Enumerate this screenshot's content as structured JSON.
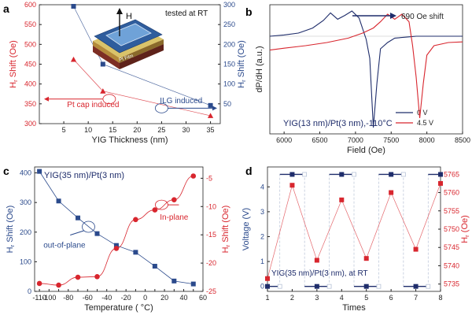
{
  "colors": {
    "red": "#d8262e",
    "blue": "#2b4a8c",
    "navy": "#1f2d6b",
    "grid": "#b7c2d6"
  },
  "panel_labels": [
    "a",
    "b",
    "c",
    "d"
  ],
  "chart_data": [
    {
      "type": "scatter",
      "panel": "a",
      "xlabel": "YIG Thickness (nm)",
      "ylabel": "H_r Shift (Oe)",
      "y2label": "H_r Shift (Oe)",
      "xlim": [
        0,
        37
      ],
      "ylim": [
        300,
        600
      ],
      "y2lim": [
        0,
        300
      ],
      "xticks": [
        "5",
        "10",
        "15",
        "20",
        "25",
        "30",
        "35"
      ],
      "yticks": [
        "300",
        "350",
        "400",
        "450",
        "500",
        "550",
        "600"
      ],
      "y2ticks": [
        "50",
        "100",
        "150",
        "200",
        "250",
        "300"
      ],
      "series": [
        {
          "name": "Pt cap induced",
          "color": "#d8262e",
          "axis": "left",
          "marker": "triangle",
          "x": [
            7,
            13,
            35
          ],
          "y": [
            462,
            382,
            320
          ]
        },
        {
          "name": "ILG induced",
          "color": "#2b4a8c",
          "axis": "right",
          "marker": "square",
          "x": [
            7,
            13,
            35
          ],
          "y": [
            296,
            150,
            46
          ]
        }
      ],
      "annotations": {
        "tested": "tested at RT",
        "h": "H",
        "film": "Pt Film",
        "pt_cap": "Pt cap induced",
        "ilg": "ILG induced"
      }
    },
    {
      "type": "line",
      "panel": "b",
      "xlabel": "Field (Oe)",
      "ylabel": "dP/dH (a.u.)",
      "xlim": [
        5800,
        8500
      ],
      "xticks": [
        "6000",
        "6500",
        "7000",
        "7500",
        "8000",
        "8500"
      ],
      "series": [
        {
          "name": "0 V",
          "color": "#1f2d6b",
          "x": [
            5800,
            6000,
            6200,
            6400,
            6550,
            6650,
            6750,
            6850,
            6950,
            7050,
            7150,
            7200,
            7250,
            7300,
            7350,
            7450,
            7550,
            7650,
            7750,
            7850,
            8000,
            8500
          ],
          "y": [
            0.55,
            0.57,
            0.6,
            0.68,
            0.8,
            0.92,
            0.82,
            0.88,
            0.95,
            0.84,
            0.5,
            0.2,
            -0.9,
            -0.2,
            0.35,
            0.45,
            0.52,
            0.53,
            0.54,
            0.55,
            0.55,
            0.55
          ]
        },
        {
          "name": "4.5 V",
          "color": "#d8262e",
          "x": [
            5800,
            6000,
            6300,
            6600,
            6900,
            7100,
            7250,
            7350,
            7450,
            7550,
            7650,
            7750,
            7800,
            7850,
            7900,
            7950,
            8000,
            8100,
            8300,
            8500
          ],
          "y": [
            0.33,
            0.36,
            0.4,
            0.45,
            0.52,
            0.6,
            0.68,
            0.78,
            0.9,
            0.82,
            0.9,
            0.78,
            0.4,
            -0.1,
            -0.75,
            -0.2,
            0.25,
            0.4,
            0.45,
            0.46
          ]
        }
      ],
      "annotations": {
        "shift": "690 Oe shift",
        "sample": "YIG(13 nm)/Pt(3 nm),-110°C"
      }
    },
    {
      "type": "scatter",
      "panel": "c",
      "xlabel": "Temperature ( °C)",
      "ylabel": "H_r Shift (Oe)",
      "y2label": "H_r Shift (Oe)",
      "xlim": [
        -115,
        60
      ],
      "ylim": [
        0,
        420
      ],
      "y2lim": [
        -25,
        -3
      ],
      "xticks": [
        "-110",
        "-100",
        "-90",
        "-80",
        "-70",
        "-60",
        "-50",
        "-40",
        "-30",
        "-20",
        "-10",
        "0",
        "10",
        "20",
        "30",
        "40",
        "50",
        "60"
      ],
      "yticks": [
        "0",
        "100",
        "200",
        "300",
        "400"
      ],
      "y2ticks": [
        "-5",
        "-10",
        "-15",
        "-20",
        "-25"
      ],
      "series": [
        {
          "name": "out-of-plane",
          "color": "#2b4a8c",
          "axis": "left",
          "marker": "square",
          "x": [
            -110,
            -90,
            -70,
            -50,
            -30,
            -10,
            10,
            30,
            50
          ],
          "y": [
            405,
            305,
            248,
            195,
            155,
            132,
            85,
            35,
            25
          ]
        },
        {
          "name": "In-plane",
          "color": "#d8262e",
          "axis": "right",
          "marker": "circle",
          "x": [
            -110,
            -90,
            -70,
            -50,
            -30,
            -10,
            10,
            30,
            50
          ],
          "y": [
            -23.6,
            -23.9,
            -22.5,
            -22.4,
            -17.4,
            -12.3,
            -10.6,
            -8.8,
            -4.6
          ]
        }
      ],
      "annotations": {
        "sample": "YIG(35 nm)/Pt(3 nm)",
        "oop": "out-of-plane",
        "ip": "In-plane"
      }
    },
    {
      "type": "line",
      "panel": "d",
      "xlabel": "Times",
      "ylabel": "Voltage (V)",
      "y2label": "H_r (Oe)",
      "xlim": [
        1,
        8
      ],
      "ylim": [
        -0.2,
        4.8
      ],
      "y2lim": [
        5733,
        5767
      ],
      "xticks": [
        "1",
        "2",
        "3",
        "4",
        "5",
        "6",
        "7",
        "8"
      ],
      "yticks": [
        "0",
        "1",
        "2",
        "3",
        "4"
      ],
      "y2ticks": [
        "5735",
        "5740",
        "5745",
        "5750",
        "5755",
        "5760",
        "5765"
      ],
      "voltage_states": [
        0,
        4.5,
        0,
        4.5,
        0,
        4.5,
        0,
        4.5
      ],
      "series": [
        {
          "name": "H_r",
          "color": "#d8262e",
          "axis": "right",
          "marker": "square",
          "x": [
            1,
            2,
            3,
            4,
            5,
            6,
            7,
            8
          ],
          "y": [
            5736.5,
            5762,
            5741.5,
            5758,
            5742,
            5760,
            5744.5,
            5762.5
          ]
        }
      ],
      "annotations": {
        "sample": "YIG(35 nm)/Pt(3 nm), at RT"
      }
    }
  ]
}
